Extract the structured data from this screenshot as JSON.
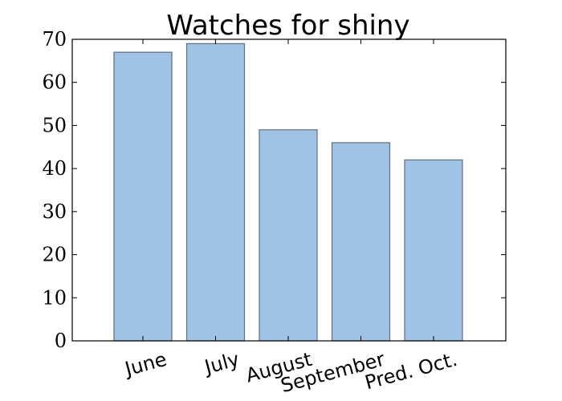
{
  "chart_data": {
    "type": "bar",
    "title": "Watches for shiny",
    "xlabel": "",
    "ylabel": "",
    "categories": [
      "June",
      "July",
      "August",
      "September",
      "Pred. Oct."
    ],
    "values": [
      67,
      69,
      49,
      46,
      42
    ],
    "ylim": [
      0,
      70
    ],
    "yticks": [
      0,
      10,
      20,
      30,
      40,
      50,
      60,
      70
    ],
    "x_tick_rotation": "rotated ~15 degrees",
    "grid": false,
    "legend": "none",
    "colors": {
      "bar_fill": "#a0c3e5",
      "bar_edge": "#5f6f7f",
      "axes": "#000000",
      "background": "#ffffff"
    }
  }
}
